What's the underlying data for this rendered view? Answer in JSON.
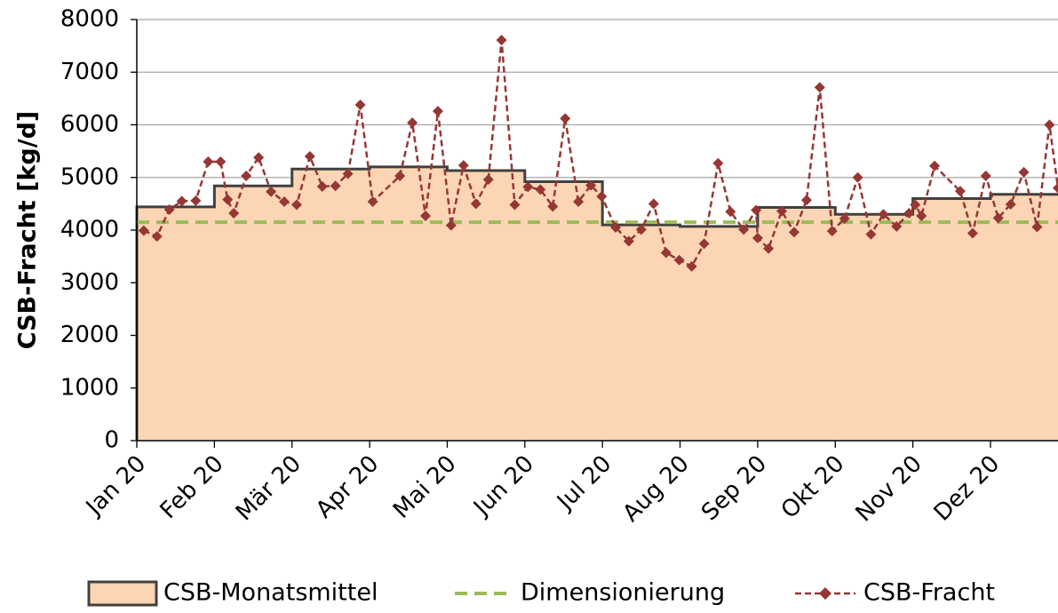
{
  "chart_data": {
    "type": "line",
    "ylabel": "CSB-Fracht [kg/d]",
    "xlim": [
      0,
      11.87
    ],
    "xticks": [
      {
        "value": 0,
        "label": "Jan 20"
      },
      {
        "value": 1,
        "label": "Feb 20"
      },
      {
        "value": 2,
        "label": "Mär 20"
      },
      {
        "value": 3,
        "label": "Apr 20"
      },
      {
        "value": 4,
        "label": "Mai 20"
      },
      {
        "value": 5,
        "label": "Jun 20"
      },
      {
        "value": 6,
        "label": "Jul 20"
      },
      {
        "value": 7,
        "label": "Aug 20"
      },
      {
        "value": 8,
        "label": "Sep 20"
      },
      {
        "value": 9,
        "label": "Okt 20"
      },
      {
        "value": 10,
        "label": "Nov 20"
      },
      {
        "value": 11,
        "label": "Dez 20"
      }
    ],
    "ylim": [
      0,
      8000
    ],
    "yticks": [
      0,
      1000,
      2000,
      3000,
      4000,
      5000,
      6000,
      7000,
      8000
    ],
    "grid": true,
    "legend": "bottom",
    "series": [
      {
        "name": "CSB-Monatsmittel",
        "type": "step",
        "color": "#404040",
        "fill": "#fcd5b4",
        "values": [
          4440,
          4840,
          5160,
          5200,
          5130,
          4920,
          4100,
          4070,
          4430,
          4300,
          4600,
          4680
        ]
      },
      {
        "name": "Dimensionierung",
        "type": "hline",
        "color": "#9bbb59",
        "values": [
          4150
        ]
      },
      {
        "name": "CSB-Fracht",
        "type": "line",
        "color": "#953735",
        "x": [
          0.09,
          0.26,
          0.42,
          0.58,
          0.76,
          0.92,
          1.08,
          1.17,
          1.25,
          1.41,
          1.57,
          1.73,
          1.9,
          2.06,
          2.23,
          2.39,
          2.56,
          2.72,
          2.88,
          3.04,
          3.39,
          3.55,
          3.72,
          3.88,
          4.05,
          4.21,
          4.37,
          4.53,
          4.7,
          4.87,
          5.04,
          5.2,
          5.36,
          5.52,
          5.69,
          5.85,
          5.99,
          6.17,
          6.34,
          6.5,
          6.66,
          6.82,
          6.99,
          7.15,
          7.31,
          7.49,
          7.65,
          7.82,
          7.98,
          8.0,
          8.14,
          8.31,
          8.47,
          8.63,
          8.8,
          8.96,
          9.12,
          9.29,
          9.46,
          9.62,
          9.79,
          9.95,
          10.03,
          10.11,
          10.28,
          10.61,
          10.77,
          10.94,
          11.1,
          11.26,
          11.43,
          11.6,
          11.76,
          11.87
        ],
        "values": [
          3990,
          3880,
          4390,
          4550,
          4560,
          5300,
          5300,
          4580,
          4320,
          5030,
          5380,
          4730,
          4540,
          4480,
          5400,
          4830,
          4840,
          5070,
          6380,
          4540,
          5030,
          6040,
          4270,
          6260,
          4090,
          5230,
          4500,
          4960,
          7610,
          4480,
          4820,
          4770,
          4450,
          6120,
          4540,
          4850,
          4640,
          4050,
          3790,
          4010,
          4500,
          3570,
          3430,
          3310,
          3740,
          5270,
          4350,
          4010,
          4380,
          3850,
          3650,
          4360,
          3960,
          4570,
          6710,
          3980,
          4220,
          5000,
          3920,
          4300,
          4070,
          4320,
          4480,
          4270,
          5220,
          4740,
          3940,
          5030,
          4230,
          4490,
          5100,
          4060,
          6000,
          4800
        ]
      }
    ]
  }
}
